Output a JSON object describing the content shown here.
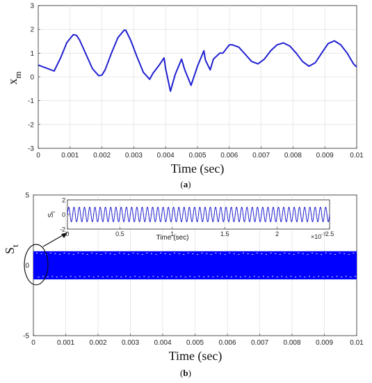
{
  "chart_data": [
    {
      "type": "line",
      "title": "",
      "panel_label_open": "(",
      "panel_label_letter": "a",
      "panel_label_close": ")",
      "xlabel": "Time (sec)",
      "ylabel_main": "x",
      "ylabel_sub": "m",
      "xlim": [
        0,
        0.01
      ],
      "ylim": [
        -3,
        3
      ],
      "xticks": [
        "0",
        "0.001",
        "0.002",
        "0.003",
        "0.004",
        "0.005",
        "0.006",
        "0.007",
        "0.008",
        "0.009",
        "0.01"
      ],
      "yticks": [
        "-3",
        "-2",
        "-1",
        "0",
        "1",
        "2",
        "3"
      ],
      "grid": true,
      "color": "#1f1fd0",
      "x": [
        0,
        0.0005,
        0.0007,
        0.0009,
        0.0011,
        0.0012,
        0.0013,
        0.0015,
        0.0017,
        0.0019,
        0.002,
        0.0021,
        0.0023,
        0.0025,
        0.0027,
        0.00275,
        0.0029,
        0.0031,
        0.0033,
        0.0035,
        0.0036,
        0.0038,
        0.00395,
        0.004,
        0.00415,
        0.0043,
        0.0045,
        0.0046,
        0.0048,
        0.005,
        0.0052,
        0.00525,
        0.0054,
        0.0055,
        0.0057,
        0.0058,
        0.006,
        0.0061,
        0.0063,
        0.0065,
        0.0067,
        0.0069,
        0.0071,
        0.0073,
        0.0075,
        0.0077,
        0.0079,
        0.0081,
        0.0083,
        0.0085,
        0.0087,
        0.0089,
        0.0091,
        0.0093,
        0.0095,
        0.0097,
        0.0099,
        0.01
      ],
      "y": [
        0.5,
        0.25,
        0.8,
        1.45,
        1.78,
        1.75,
        1.55,
        0.95,
        0.35,
        0.05,
        0.08,
        0.3,
        1.0,
        1.65,
        1.97,
        1.96,
        1.55,
        0.85,
        0.2,
        -0.1,
        0.15,
        0.5,
        0.8,
        0.35,
        -0.6,
        0.1,
        0.75,
        0.3,
        -0.35,
        0.45,
        1.1,
        0.7,
        0.3,
        0.75,
        1.0,
        1.0,
        1.35,
        1.35,
        1.25,
        0.95,
        0.65,
        0.55,
        0.75,
        1.1,
        1.35,
        1.43,
        1.3,
        1.0,
        0.65,
        0.45,
        0.6,
        1.0,
        1.4,
        1.52,
        1.35,
        1.0,
        0.55,
        0.42
      ]
    },
    {
      "type": "line",
      "title": "",
      "panel_label_open": "(",
      "panel_label_letter": "b",
      "panel_label_close": ")",
      "xlabel": "Time (sec)",
      "ylabel_main": "S",
      "ylabel_sub": "t",
      "xlim": [
        0,
        0.01
      ],
      "ylim": [
        -5,
        5
      ],
      "xticks": [
        "0",
        "0.001",
        "0.002",
        "0.003",
        "0.004",
        "0.005",
        "0.006",
        "0.007",
        "0.008",
        "0.009",
        "0.01"
      ],
      "yticks": [
        "-5",
        "0",
        "5"
      ],
      "grid": true,
      "color": "#0000ff",
      "band_min": -1,
      "band_max": 1,
      "note": ""
    },
    {
      "type": "line",
      "title": "",
      "xlabel": "Time (sec)",
      "ylabel_main": "S",
      "ylabel_sub": "t",
      "xlim": [
        0,
        2.5
      ],
      "ylim": [
        -2,
        2
      ],
      "xticks": [
        "0",
        "0.5",
        "1",
        "1.5",
        "2",
        "2.5"
      ],
      "yticks": [
        "-2",
        "0",
        "2"
      ],
      "x_exponent_base": "×10",
      "x_exponent_power": "-7",
      "grid": true,
      "color": "#1f1fd0",
      "amplitude": 1,
      "cycles": 50
    }
  ]
}
